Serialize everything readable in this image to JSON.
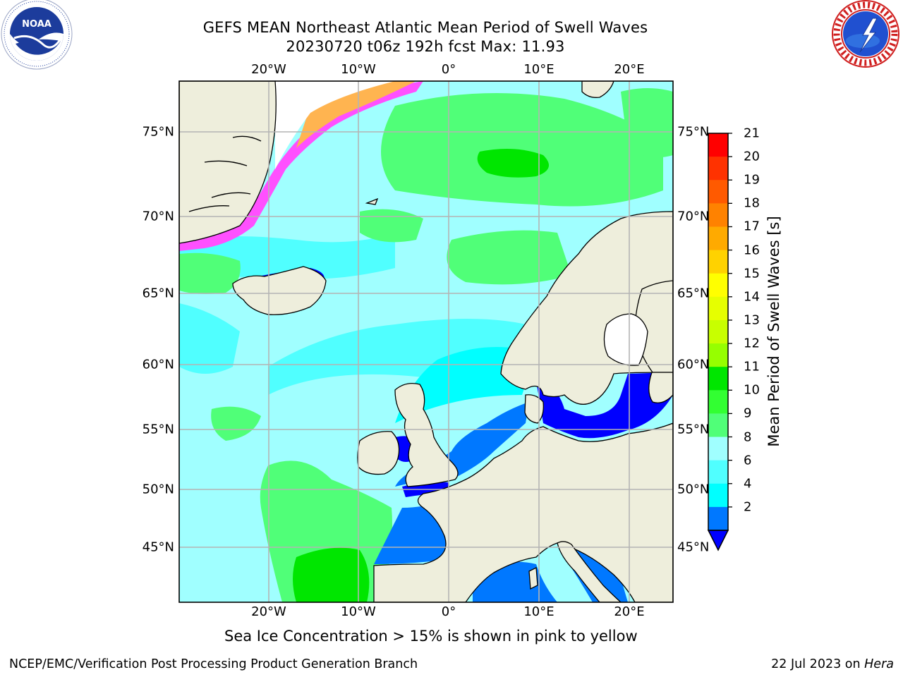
{
  "header": {
    "title_line1": "GEFS MEAN Northeast Atlantic Mean Period of Swell Waves",
    "title_line2": "20230720 t06z 192h fcst   Max: 11.93"
  },
  "map": {
    "lon_labels": [
      "20°W",
      "10°W",
      "0°",
      "10°E",
      "20°E"
    ],
    "lat_labels": [
      "75°N",
      "70°N",
      "65°N",
      "60°N",
      "55°N",
      "50°N",
      "45°N"
    ],
    "colors": {
      "land": "#eeeedc",
      "ocean_light": "#a0ffff",
      "ocean_cyan": "#50ffff",
      "ocean_bright": "#00ffff",
      "swell_green": "#50ff78",
      "swell_bright_green": "#00e600",
      "shallow_blue": "#0078ff",
      "sea_blue": "#0000ff",
      "ice_pink": "#ff50ff",
      "ice_orange": "#ffb450",
      "ice_white": "#ffffff",
      "grid": "#b4b4b4"
    }
  },
  "colorbar": {
    "label": "Mean Period of Swell Waves [s]",
    "ticks": [
      "21",
      "20",
      "19",
      "18",
      "17",
      "16",
      "15",
      "14",
      "13",
      "12",
      "11",
      "10",
      "9",
      "8",
      "6",
      "4",
      "2"
    ],
    "colors": [
      "#ff0000",
      "#ff3200",
      "#ff5a00",
      "#ff8200",
      "#ffaa00",
      "#ffd200",
      "#ffff00",
      "#e6ff00",
      "#c8ff00",
      "#96ff00",
      "#00e600",
      "#32ff32",
      "#50ff78",
      "#a0ffff",
      "#50ffff",
      "#00ffff",
      "#0078ff"
    ],
    "extend_color": "#0000ff"
  },
  "note": "Sea Ice Concentration > 15% is shown in pink to yellow",
  "footer": {
    "left": "NCEP/EMC/Verification Post Processing Product Generation Branch",
    "date": "22 Jul 2023 on ",
    "machine": "Hera"
  },
  "logos": {
    "noaa_text": "NOAA",
    "nws_text": "NATIONAL WEATHER SERVICE"
  }
}
